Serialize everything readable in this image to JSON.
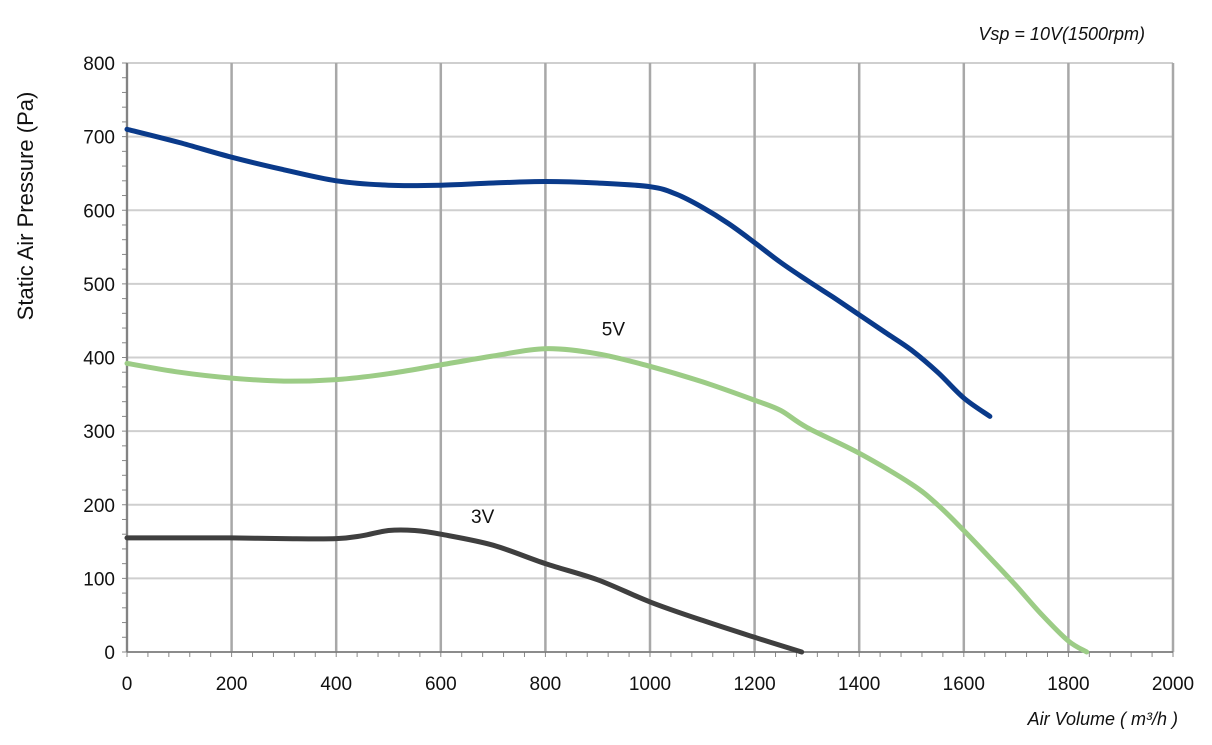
{
  "chart_data": {
    "type": "line",
    "annotation": "Vsp = 10V(1500rpm)",
    "xlabel": "Air Volume ( m³/h )",
    "ylabel": "Static Air Pressure  (Pa)",
    "xlim": [
      0,
      2000
    ],
    "ylim": [
      0,
      800
    ],
    "xticks": [
      0,
      200,
      400,
      600,
      800,
      1000,
      1200,
      1400,
      1600,
      1800,
      2000
    ],
    "yticks": [
      0,
      100,
      200,
      300,
      400,
      500,
      600,
      700,
      800
    ],
    "grid": true,
    "series": [
      {
        "label": "",
        "color": "#0a3a8a",
        "points": [
          [
            0,
            710
          ],
          [
            100,
            692
          ],
          [
            200,
            672
          ],
          [
            300,
            655
          ],
          [
            400,
            640
          ],
          [
            500,
            634
          ],
          [
            600,
            634
          ],
          [
            700,
            637
          ],
          [
            800,
            639
          ],
          [
            900,
            637
          ],
          [
            1000,
            632
          ],
          [
            1050,
            622
          ],
          [
            1100,
            604
          ],
          [
            1150,
            582
          ],
          [
            1200,
            556
          ],
          [
            1250,
            529
          ],
          [
            1300,
            505
          ],
          [
            1350,
            482
          ],
          [
            1400,
            458
          ],
          [
            1450,
            434
          ],
          [
            1500,
            410
          ],
          [
            1550,
            380
          ],
          [
            1600,
            345
          ],
          [
            1650,
            320
          ]
        ]
      },
      {
        "label": "5V",
        "color": "#9ccc86",
        "label_at": [
          930,
          430
        ],
        "points": [
          [
            0,
            392
          ],
          [
            100,
            380
          ],
          [
            200,
            372
          ],
          [
            300,
            368
          ],
          [
            400,
            370
          ],
          [
            500,
            378
          ],
          [
            600,
            390
          ],
          [
            700,
            402
          ],
          [
            800,
            412
          ],
          [
            900,
            405
          ],
          [
            1000,
            388
          ],
          [
            1100,
            367
          ],
          [
            1200,
            342
          ],
          [
            1250,
            328
          ],
          [
            1300,
            305
          ],
          [
            1400,
            270
          ],
          [
            1500,
            228
          ],
          [
            1550,
            200
          ],
          [
            1600,
            165
          ],
          [
            1650,
            128
          ],
          [
            1700,
            90
          ],
          [
            1750,
            50
          ],
          [
            1800,
            15
          ],
          [
            1835,
            0
          ]
        ]
      },
      {
        "label": "3V",
        "color": "#3f3f3f",
        "label_at": [
          680,
          175
        ],
        "points": [
          [
            0,
            155
          ],
          [
            100,
            155
          ],
          [
            200,
            155
          ],
          [
            300,
            154
          ],
          [
            400,
            154
          ],
          [
            450,
            158
          ],
          [
            500,
            165
          ],
          [
            550,
            165
          ],
          [
            600,
            160
          ],
          [
            700,
            145
          ],
          [
            800,
            120
          ],
          [
            900,
            98
          ],
          [
            1000,
            68
          ],
          [
            1100,
            43
          ],
          [
            1200,
            20
          ],
          [
            1290,
            0
          ]
        ]
      }
    ]
  }
}
